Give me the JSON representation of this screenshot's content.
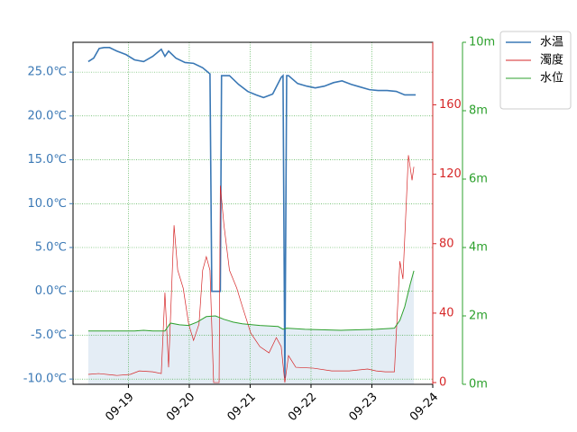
{
  "chart_data": {
    "type": "line",
    "xlim": [
      18.09,
      24.0
    ],
    "xticks": [
      {
        "value": 19,
        "label": "09-19"
      },
      {
        "value": 20,
        "label": "09-20"
      },
      {
        "value": 21,
        "label": "09-21"
      },
      {
        "value": 22,
        "label": "09-22"
      },
      {
        "value": 23,
        "label": "09-23"
      },
      {
        "value": 24,
        "label": "09-24"
      }
    ],
    "ylim": [
      -10.6,
      28.4
    ],
    "yticks": [
      {
        "value": -10,
        "label": "-10.0℃"
      },
      {
        "value": -5,
        "label": "-5.0℃"
      },
      {
        "value": 0,
        "label": "0.0℃"
      },
      {
        "value": 5,
        "label": "5.0℃"
      },
      {
        "value": 10,
        "label": "10.0℃"
      },
      {
        "value": 15,
        "label": "15.0℃"
      },
      {
        "value": 20,
        "label": "20.0℃"
      },
      {
        "value": 25,
        "label": "25.0℃"
      }
    ],
    "y2lim": [
      -1,
      196
    ],
    "y2ticks": [
      0,
      40,
      80,
      120,
      160
    ],
    "y3lim": [
      0,
      10
    ],
    "y3ticks": [
      {
        "value": 0,
        "label": "0m"
      },
      {
        "value": 2,
        "label": "2m"
      },
      {
        "value": 4,
        "label": "4m"
      },
      {
        "value": 6,
        "label": "6m"
      },
      {
        "value": 8,
        "label": "8m"
      },
      {
        "value": 10,
        "label": "10m"
      }
    ],
    "grid": true,
    "grid_color": "#2ca02c",
    "legend": "upper right outside",
    "series": [
      {
        "name": "水温",
        "color": "#3a78b5",
        "axis": "y",
        "x": [
          18.34,
          18.43,
          18.52,
          18.6,
          18.69,
          18.81,
          18.96,
          19.1,
          19.25,
          19.4,
          19.54,
          19.6,
          19.66,
          19.78,
          19.93,
          20.07,
          20.22,
          20.34,
          20.37,
          20.51,
          20.53,
          20.66,
          20.81,
          20.96,
          21.1,
          21.22,
          21.37,
          21.51,
          21.54,
          21.57,
          21.6,
          21.63,
          21.78,
          21.93,
          22.07,
          22.22,
          22.37,
          22.51,
          22.66,
          22.81,
          22.96,
          23.1,
          23.25,
          23.4,
          23.54,
          23.72
        ],
        "values": [
          26.2,
          26.6,
          27.7,
          27.8,
          27.8,
          27.4,
          27.0,
          26.4,
          26.2,
          26.8,
          27.6,
          26.8,
          27.4,
          26.6,
          26.1,
          26.0,
          25.5,
          24.8,
          0,
          0,
          24.6,
          24.6,
          23.6,
          22.8,
          22.4,
          22.1,
          22.5,
          24.4,
          24.6,
          -9.9,
          24.6,
          24.6,
          23.7,
          23.4,
          23.2,
          23.4,
          23.8,
          24.0,
          23.6,
          23.3,
          23.0,
          22.9,
          22.9,
          22.8,
          22.4,
          22.4
        ]
      },
      {
        "name": "濁度",
        "color": "#d62728",
        "axis": "y2",
        "x": [
          18.34,
          18.51,
          18.81,
          19.03,
          19.18,
          19.4,
          19.54,
          19.6,
          19.66,
          19.75,
          19.81,
          19.9,
          19.99,
          20.07,
          20.16,
          20.22,
          20.28,
          20.34,
          20.4,
          20.49,
          20.51,
          20.57,
          20.66,
          20.78,
          20.87,
          21.01,
          21.16,
          21.31,
          21.43,
          21.51,
          21.57,
          21.63,
          21.75,
          22.04,
          22.34,
          22.63,
          22.93,
          23.07,
          23.22,
          23.37,
          23.46,
          23.51,
          23.6,
          23.66,
          23.69
        ],
        "values": [
          4.7,
          5.2,
          4.1,
          4.7,
          6.7,
          6.2,
          5.2,
          51.8,
          8.8,
          90.6,
          64.7,
          54.4,
          33.7,
          24.3,
          33.7,
          64.7,
          72.5,
          64.7,
          0,
          0,
          113.4,
          90.6,
          64.7,
          54.4,
          44,
          28.5,
          20.7,
          17.1,
          25.9,
          20.7,
          0,
          15.5,
          8.8,
          8.3,
          6.7,
          6.7,
          7.8,
          6.7,
          6.2,
          6.2,
          69.9,
          59.6,
          131,
          116.5,
          124.3
        ]
      },
      {
        "name": "水位",
        "color": "#2ca02c",
        "axis": "y3",
        "fill": "#e4edf5",
        "x": [
          18.34,
          18.81,
          19.1,
          19.25,
          19.4,
          19.6,
          19.69,
          19.84,
          19.99,
          20.13,
          20.28,
          20.43,
          20.57,
          20.72,
          20.87,
          21.16,
          21.46,
          21.54,
          21.6,
          21.9,
          22.49,
          23.07,
          23.37,
          23.46,
          23.54,
          23.63,
          23.69
        ],
        "values": [
          1.56,
          1.56,
          1.56,
          1.58,
          1.56,
          1.56,
          1.79,
          1.74,
          1.72,
          1.82,
          1.98,
          2.0,
          1.9,
          1.82,
          1.77,
          1.72,
          1.69,
          1.61,
          1.64,
          1.61,
          1.58,
          1.61,
          1.64,
          1.87,
          2.27,
          2.93,
          3.32
        ]
      }
    ]
  }
}
